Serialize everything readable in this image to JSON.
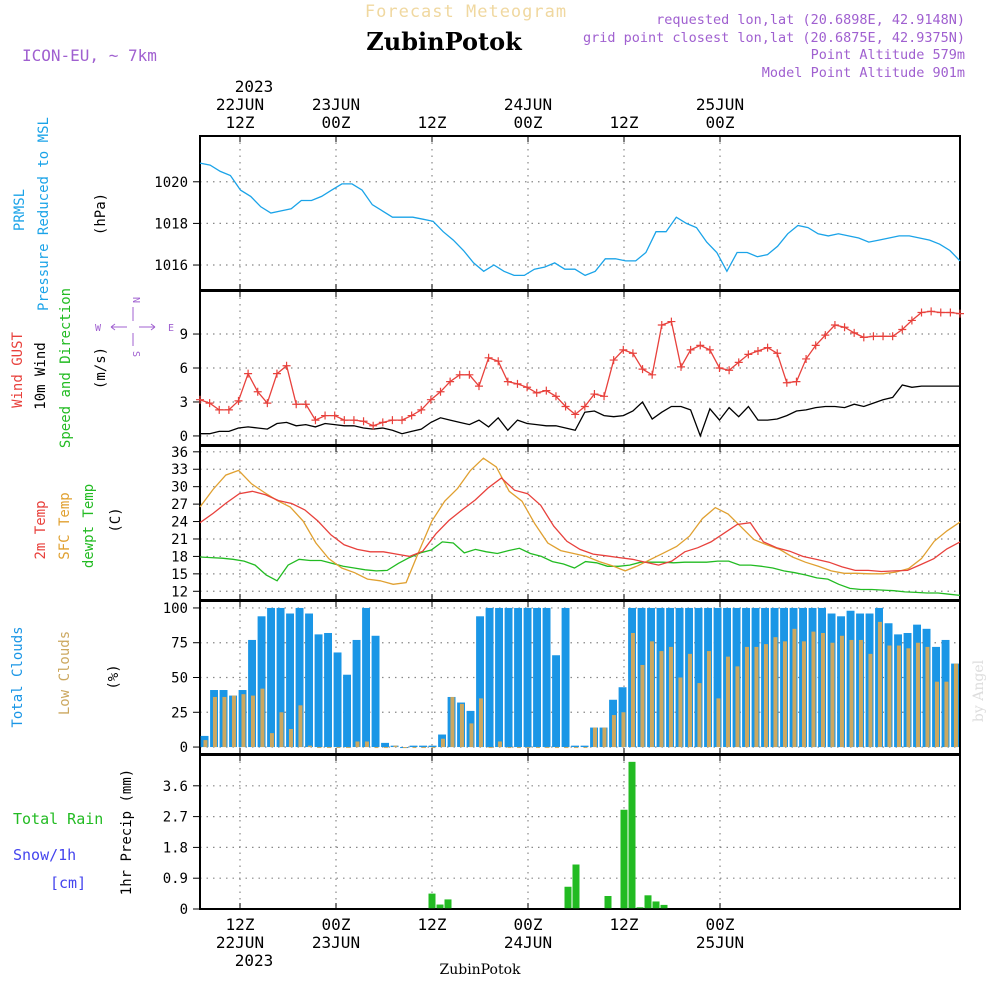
{
  "header": {
    "product": "Forecast Meteogram",
    "model": "ICON-EU, ~ 7km",
    "location": "ZubinPotok",
    "requested": "requested lon,lat (20.6898E, 42.9148N)",
    "closest": "grid point closest lon,lat (20.6875E, 42.9375N)",
    "point_altitude": "Point Altitude 579m",
    "model_altitude": "Model Point Altitude 901m",
    "footer_location": "ZubinPotok",
    "watermark": "by Angel"
  },
  "time_axis": {
    "start_hour": 7,
    "end_hour": 102,
    "top_year": "2023",
    "ticks": [
      {
        "hour": 12,
        "top_date": "22JUN",
        "label": "12Z",
        "bottom_date": "22JUN"
      },
      {
        "hour": 24,
        "top_date": "23JUN",
        "label": "00Z",
        "bottom_date": "23JUN"
      },
      {
        "hour": 36,
        "top_date": "",
        "label": "12Z",
        "bottom_date": ""
      },
      {
        "hour": 48,
        "top_date": "24JUN",
        "label": "00Z",
        "bottom_date": "24JUN"
      },
      {
        "hour": 60,
        "top_date": "",
        "label": "12Z",
        "bottom_date": ""
      },
      {
        "hour": 72,
        "top_date": "25JUN",
        "label": "00Z",
        "bottom_date": "25JUN"
      }
    ],
    "bottom_year": "2023"
  },
  "colors": {
    "pressure": "#1aa3e8",
    "gust": "#e8413c",
    "wind": "#000000",
    "label_green": "#22bb22",
    "temp2m": "#e8413c",
    "sfc": "#e0a030",
    "dewpt": "#22bb22",
    "total_clouds": "#1a96e6",
    "low_clouds": "#cca860",
    "rain": "#22bb22",
    "snow": "#4444ee",
    "purple": "#a060d0",
    "grid": "#888888",
    "header_orange": "#f0d8a0"
  },
  "chart_data": [
    {
      "type": "line",
      "name": "pressure",
      "label_lines": [
        "PRMSL",
        "Pressure Reduced to MSL"
      ],
      "units": "(hPa)",
      "ylim": [
        1014.8,
        1022.2
      ],
      "yticks": [
        1016,
        1018,
        1020
      ],
      "grid": true,
      "series": [
        {
          "values": [
            1020.9,
            1020.8,
            1020.5,
            1020.3,
            1019.6,
            1019.3,
            1018.8,
            1018.5,
            1018.6,
            1018.7,
            1019.1,
            1019.1,
            1019.3,
            1019.6,
            1019.9,
            1019.9,
            1019.6,
            1018.9,
            1018.6,
            1018.3,
            1018.3,
            1018.3,
            1018.2,
            1018.1,
            1017.6,
            1017.2,
            1016.7,
            1016.1,
            1015.7,
            1016.0,
            1015.7,
            1015.5,
            1015.5,
            1015.8,
            1015.9,
            1016.1,
            1015.8,
            1015.8,
            1015.5,
            1015.7,
            1016.3,
            1016.3,
            1016.2,
            1016.2,
            1016.6,
            1017.6,
            1017.6,
            1018.3,
            1018.0,
            1017.8,
            1017.1,
            1016.6,
            1015.7,
            1016.6,
            1016.6,
            1016.4,
            1016.5,
            1016.9,
            1017.5,
            1017.9,
            1017.8,
            1017.5,
            1017.4,
            1017.5,
            1017.4,
            1017.3,
            1017.1,
            1017.2,
            1017.3,
            1017.4,
            1017.4,
            1017.3,
            1017.2,
            1017.0,
            1016.7,
            1016.2
          ]
        }
      ]
    },
    {
      "type": "line",
      "name": "wind",
      "label_lines": [
        "Wind GUST",
        "10m Wind",
        "Speed and Direction"
      ],
      "units": "(m/s)",
      "compass": [
        "N",
        "W",
        "E",
        "S"
      ],
      "ylim": [
        -0.8,
        12.8
      ],
      "yticks": [
        0,
        3,
        6,
        9
      ],
      "grid": true,
      "series": [
        {
          "name": "Wind GUST",
          "values": [
            3.2,
            2.9,
            2.3,
            2.3,
            3.1,
            5.5,
            3.9,
            2.9,
            5.5,
            6.2,
            2.8,
            2.8,
            1.4,
            1.8,
            1.8,
            1.4,
            1.4,
            1.3,
            0.9,
            1.2,
            1.4,
            1.4,
            1.8,
            2.3,
            3.2,
            3.9,
            4.8,
            5.4,
            5.4,
            4.4,
            6.9,
            6.6,
            4.8,
            4.6,
            4.3,
            3.8,
            4.0,
            3.5,
            2.6,
            1.9,
            2.6,
            3.7,
            3.5,
            6.7,
            7.6,
            7.3,
            5.9,
            5.4,
            9.8,
            10.1,
            6.1,
            7.6,
            8.0,
            7.6,
            6.0,
            5.8,
            6.5,
            7.2,
            7.5,
            7.8,
            7.3,
            4.7,
            4.8,
            6.8,
            8.0,
            8.9,
            9.8,
            9.6,
            9.1,
            8.7,
            8.8,
            8.8,
            8.8,
            9.4,
            10.2,
            10.9,
            11.0,
            10.9,
            10.9,
            10.8
          ]
        },
        {
          "name": "10m Wind",
          "values": [
            0.2,
            0.2,
            0.4,
            0.4,
            0.7,
            0.8,
            0.7,
            0.6,
            1.1,
            1.2,
            0.9,
            1.0,
            0.8,
            1.1,
            1.0,
            0.9,
            0.9,
            0.7,
            0.6,
            0.7,
            0.5,
            0.2,
            0.4,
            0.6,
            1.2,
            1.6,
            1.4,
            1.2,
            1.0,
            1.4,
            0.8,
            1.6,
            0.5,
            1.4,
            1.1,
            1.0,
            0.9,
            0.9,
            0.7,
            0.5,
            2.1,
            2.2,
            1.8,
            1.7,
            1.8,
            2.2,
            3.0,
            1.5,
            2.1,
            2.6,
            2.6,
            2.3,
            0.0,
            2.4,
            1.4,
            2.5,
            1.7,
            2.6,
            1.4,
            1.4,
            1.5,
            1.8,
            2.2,
            2.3,
            2.5,
            2.6,
            2.6,
            2.5,
            2.8,
            2.6,
            2.9,
            3.2,
            3.4,
            4.5,
            4.3,
            4.4,
            4.4,
            4.4,
            4.4,
            4.4
          ]
        }
      ]
    },
    {
      "type": "line",
      "name": "temperature",
      "label_lines": [
        "2m Temp",
        "SFC Temp",
        "dewpt Temp"
      ],
      "units": "(C)",
      "ylim": [
        10.5,
        37
      ],
      "yticks": [
        12,
        15,
        18,
        21,
        24,
        27,
        30,
        33,
        36
      ],
      "grid": true,
      "series": [
        {
          "name": "2m Temp",
          "values": [
            23.8,
            25.4,
            27.2,
            28.8,
            29.2,
            28.6,
            27.6,
            27.1,
            26.0,
            24.1,
            21.7,
            20.0,
            19.2,
            18.8,
            18.8,
            18.4,
            18.0,
            18.9,
            21.9,
            24.2,
            26.0,
            27.7,
            29.8,
            31.5,
            29.4,
            28.8,
            26.8,
            23.2,
            20.6,
            19.2,
            18.4,
            18.1,
            17.8,
            17.5,
            17.0,
            16.5,
            17.2,
            18.8,
            19.5,
            20.5,
            22.0,
            23.5,
            23.8,
            20.5,
            19.5,
            18.9,
            18.0,
            17.5,
            17.0,
            16.2,
            15.6,
            15.6,
            15.4,
            15.5,
            15.6,
            16.6,
            17.6,
            19.3,
            20.5
          ]
        },
        {
          "name": "SFC Temp",
          "values": [
            26.5,
            29.5,
            32.0,
            32.8,
            30.5,
            29.0,
            27.6,
            26.5,
            24.1,
            20.3,
            17.6,
            16.0,
            15.2,
            14.1,
            13.8,
            13.2,
            13.5,
            18.9,
            24.1,
            27.5,
            29.7,
            32.8,
            34.9,
            33.4,
            29.2,
            27.5,
            23.6,
            20.3,
            19.0,
            18.5,
            18.0,
            17.1,
            16.4,
            15.5,
            16.4,
            17.5,
            18.6,
            19.7,
            21.5,
            24.5,
            26.4,
            25.3,
            23.1,
            20.9,
            20.0,
            19.2,
            17.9,
            17.0,
            16.3,
            15.5,
            15.1,
            15.1,
            15.0,
            15.0,
            15.3,
            15.9,
            17.6,
            20.6,
            22.4,
            23.9
          ]
        },
        {
          "name": "dewpt Temp",
          "values": [
            17.9,
            17.8,
            17.7,
            17.5,
            17.2,
            16.5,
            14.8,
            13.8,
            16.5,
            17.5,
            17.3,
            17.3,
            16.8,
            16.3,
            16.0,
            15.7,
            15.5,
            15.6,
            16.8,
            17.8,
            18.6,
            19.1,
            20.5,
            20.3,
            18.6,
            19.2,
            18.8,
            18.5,
            19.0,
            19.4,
            18.5,
            18.0,
            17.1,
            16.7,
            16.0,
            17.1,
            16.9,
            16.3,
            16.3,
            16.5,
            17.0,
            17.0,
            17.0,
            16.9,
            17.0,
            17.0,
            17.0,
            17.2,
            17.2,
            16.5,
            16.5,
            16.3,
            16.0,
            15.5,
            15.2,
            14.8,
            14.3,
            14.1,
            13.2,
            12.5,
            12.3,
            12.3,
            12.2,
            12.1,
            11.9,
            11.8,
            11.7,
            11.7,
            11.5,
            11.3
          ]
        }
      ]
    },
    {
      "type": "bar",
      "name": "clouds",
      "label_lines": [
        "Total Clouds",
        "Low Clouds"
      ],
      "units": "(%)",
      "ylim": [
        -5,
        105
      ],
      "yticks": [
        0,
        25,
        50,
        75,
        100
      ],
      "grid": true,
      "series": [
        {
          "name": "Total Clouds",
          "values": [
            8,
            41,
            41,
            37,
            41,
            77,
            94,
            100,
            100,
            96,
            100,
            96,
            81,
            82,
            68,
            52,
            77,
            100,
            80,
            3,
            1,
            0,
            1,
            1,
            1,
            9,
            36,
            32,
            26,
            94,
            100,
            100,
            100,
            100,
            100,
            100,
            100,
            66,
            100,
            1,
            1,
            14,
            14,
            34,
            43,
            100,
            100,
            100,
            100,
            100,
            100,
            100,
            100,
            100,
            100,
            100,
            100,
            100,
            100,
            100,
            100,
            100,
            100,
            100,
            100,
            100,
            96,
            94,
            98,
            96,
            96,
            100,
            89,
            81,
            82,
            88,
            85,
            72,
            77,
            60
          ]
        },
        {
          "name": "Low Clouds",
          "values": [
            5,
            36,
            36,
            37,
            38,
            37,
            42,
            10,
            25,
            13,
            30,
            1,
            0,
            0,
            0,
            0,
            4,
            4,
            0,
            0,
            1,
            0,
            0,
            0,
            0,
            6,
            36,
            31,
            17,
            35,
            0,
            4,
            0,
            0,
            0,
            0,
            0,
            0,
            0,
            0,
            0,
            14,
            14,
            23,
            25,
            82,
            59,
            76,
            69,
            72,
            50,
            67,
            46,
            69,
            35,
            65,
            58,
            72,
            72,
            74,
            79,
            76,
            85,
            76,
            83,
            82,
            75,
            80,
            77,
            77,
            67,
            90,
            73,
            73,
            71,
            75,
            72,
            47,
            47,
            60
          ]
        }
      ]
    },
    {
      "type": "bar",
      "name": "precipitation",
      "label_lines": [
        "Total Rain",
        "Snow/1h",
        "[cm]"
      ],
      "units": "1hr Precip (mm)",
      "ylim": [
        0,
        4.5
      ],
      "yticks": [
        0,
        0.9,
        1.8,
        2.7,
        3.6
      ],
      "grid": true,
      "series": [
        {
          "name": "Total Rain",
          "values": [
            [
              36,
              0.45
            ],
            [
              37,
              0.13
            ],
            [
              38,
              0.28
            ],
            [
              53,
              0.65
            ],
            [
              54,
              1.3
            ],
            [
              58,
              0.38
            ],
            [
              60,
              2.9
            ],
            [
              61,
              4.3
            ],
            [
              62,
              0.05
            ],
            [
              63,
              0.4
            ],
            [
              64,
              0.22
            ],
            [
              65,
              0.12
            ]
          ]
        },
        {
          "name": "Snow/1h",
          "values": []
        }
      ]
    }
  ]
}
